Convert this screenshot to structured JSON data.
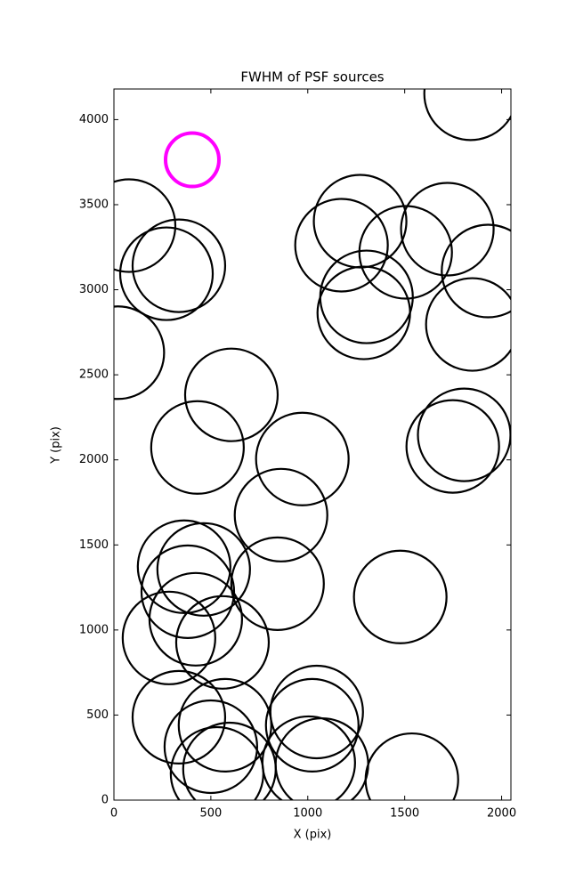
{
  "chart_data": {
    "type": "scatter",
    "title": "FWHM of PSF sources",
    "x_label": "X (pix)",
    "y_label": "Y (pix)",
    "xlim": [
      0,
      2048
    ],
    "ylim": [
      0,
      4180
    ],
    "xticks": [
      0,
      500,
      1000,
      1500,
      2000
    ],
    "yticks": [
      0,
      500,
      1000,
      1500,
      2000,
      2500,
      3000,
      3500,
      4000
    ],
    "series": [
      {
        "color": "#000000",
        "x": [
          78,
          271,
          335,
          20,
          1840,
          1270,
          1174,
          1720,
          1505,
          1930,
          1303,
          1289,
          1849,
          606,
          431,
          972,
          862,
          1807,
          1748,
          463,
          362,
          381,
          844,
          1477,
          422,
          284,
          560,
          335,
          573,
          500,
          596,
          532,
          1046,
          1023,
          1005,
          1073,
          1537
        ],
        "values": [
          3377,
          3094,
          3141,
          2630,
          4152,
          3403,
          3262,
          3356,
          3220,
          3110,
          2958,
          2864,
          2796,
          2382,
          2073,
          2005,
          1675,
          2147,
          2079,
          1356,
          1372,
          1225,
          1272,
          1194,
          1063,
          953,
          927,
          487,
          440,
          314,
          183,
          157,
          518,
          440,
          220,
          209,
          120
        ]
      },
      {
        "color": "#ff00ff",
        "x": [
          404
        ],
        "values": [
          3764
        ]
      }
    ]
  }
}
